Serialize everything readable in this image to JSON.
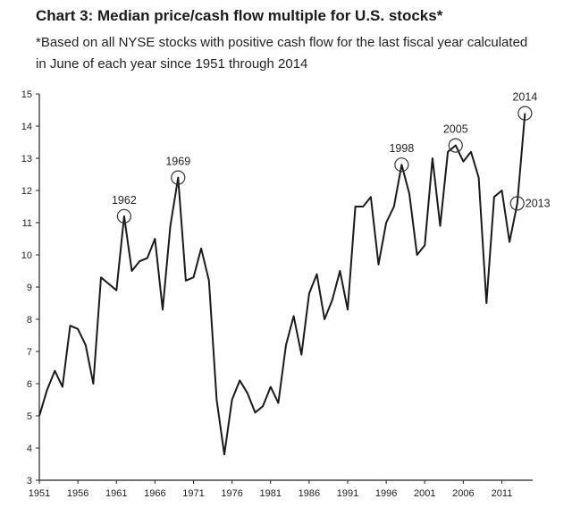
{
  "chart_data": {
    "type": "line",
    "title": "Chart 3: Median price/cash flow multiple for U.S. stocks*",
    "subtitle": "*Based on all NYSE stocks with positive cash flow for the last fiscal year calculated in June of each year since 1951 through 2014",
    "xlabel": "",
    "ylabel": "",
    "xlim": [
      1951,
      2015
    ],
    "ylim": [
      3,
      15
    ],
    "x_ticks": [
      1951,
      1956,
      1961,
      1966,
      1971,
      1976,
      1981,
      1986,
      1991,
      1996,
      2001,
      2006,
      2011
    ],
    "y_ticks": [
      3,
      4,
      5,
      6,
      7,
      8,
      9,
      10,
      11,
      12,
      13,
      14,
      15
    ],
    "grid": false,
    "series": [
      {
        "name": "Median price/cash flow multiple",
        "x": [
          1951,
          1952,
          1953,
          1954,
          1955,
          1956,
          1957,
          1958,
          1959,
          1960,
          1961,
          1962,
          1963,
          1964,
          1965,
          1966,
          1967,
          1968,
          1969,
          1970,
          1971,
          1972,
          1973,
          1974,
          1975,
          1976,
          1977,
          1978,
          1979,
          1980,
          1981,
          1982,
          1983,
          1984,
          1985,
          1986,
          1987,
          1988,
          1989,
          1990,
          1991,
          1992,
          1993,
          1994,
          1995,
          1996,
          1997,
          1998,
          1999,
          2000,
          2001,
          2002,
          2003,
          2004,
          2005,
          2006,
          2007,
          2008,
          2009,
          2010,
          2011,
          2012,
          2013,
          2014
        ],
        "values": [
          5.0,
          5.8,
          6.4,
          5.9,
          7.8,
          7.7,
          7.2,
          6.0,
          9.3,
          9.1,
          8.9,
          11.2,
          9.5,
          9.8,
          9.9,
          10.5,
          8.3,
          10.9,
          12.4,
          9.2,
          9.3,
          10.2,
          9.2,
          5.5,
          3.8,
          5.5,
          6.1,
          5.7,
          5.1,
          5.3,
          5.9,
          5.4,
          7.2,
          8.1,
          6.9,
          8.8,
          9.4,
          8.0,
          8.6,
          9.5,
          8.3,
          11.5,
          11.5,
          11.8,
          9.7,
          11.0,
          11.5,
          12.8,
          11.9,
          10.0,
          10.3,
          13.0,
          10.9,
          13.2,
          13.4,
          12.9,
          13.2,
          12.4,
          8.5,
          11.8,
          12.0,
          10.4,
          11.6,
          14.4
        ]
      }
    ],
    "annotations": [
      {
        "label": "1962",
        "x": 1962,
        "y": 11.2
      },
      {
        "label": "1969",
        "x": 1969,
        "y": 12.4
      },
      {
        "label": "1998",
        "x": 1998,
        "y": 12.8
      },
      {
        "label": "2005",
        "x": 2005,
        "y": 13.4
      },
      {
        "label": "2013",
        "x": 2013,
        "y": 11.6
      },
      {
        "label": "2014",
        "x": 2014,
        "y": 14.4
      }
    ]
  }
}
